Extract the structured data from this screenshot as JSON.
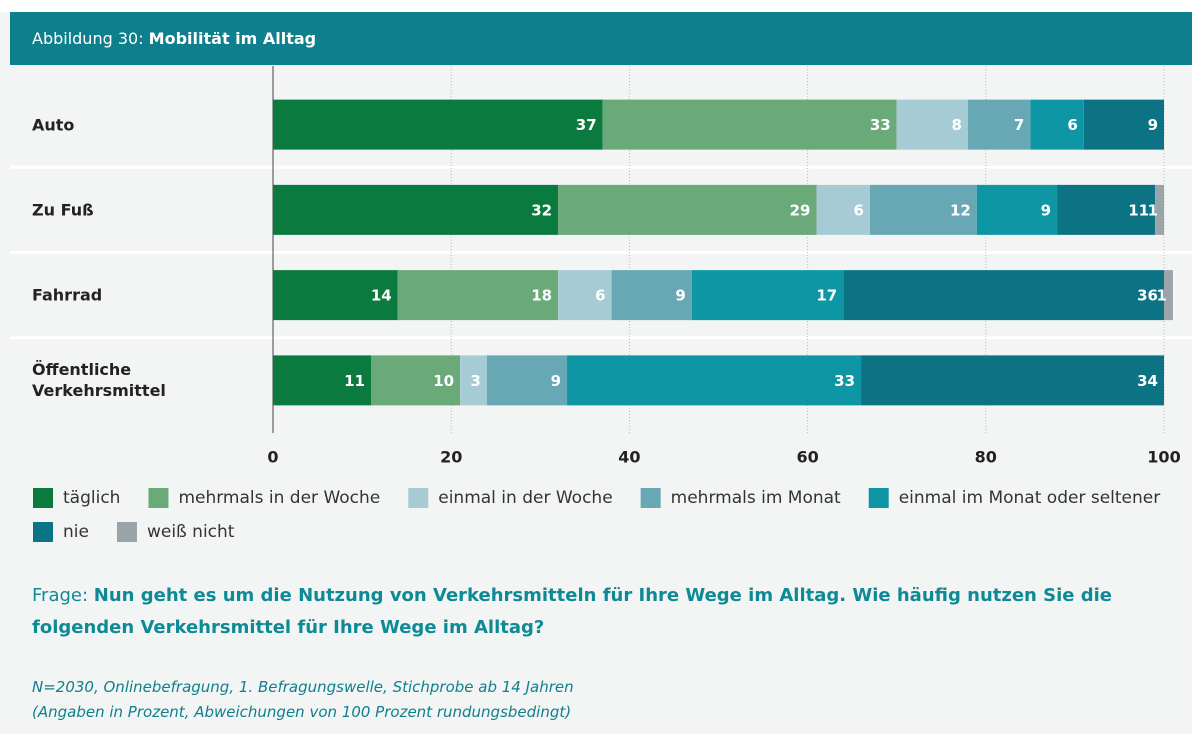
{
  "chart_data": {
    "type": "stacked_barh",
    "figure_label": "Abbildung 30:",
    "title": "Mobilität im Alltag",
    "categories": [
      "Auto",
      "Zu Fuß",
      "Fahrrad",
      "Öffentliche Verkehrsmittel"
    ],
    "series": [
      {
        "name": "täglich",
        "color": "#0b7a3e",
        "values": [
          37,
          32,
          14,
          11
        ]
      },
      {
        "name": "mehrmals in der Woche",
        "color": "#6aa978",
        "values": [
          33,
          29,
          18,
          10
        ]
      },
      {
        "name": "einmal in der Woche",
        "color": "#a7cbd4",
        "values": [
          8,
          6,
          6,
          3
        ]
      },
      {
        "name": "mehrmals im Monat",
        "color": "#67a8b4",
        "values": [
          7,
          12,
          9,
          9
        ]
      },
      {
        "name": "einmal im Monat oder seltener",
        "color": "#0f96a5",
        "values": [
          6,
          9,
          17,
          33
        ]
      },
      {
        "name": "nie",
        "color": "#0b7384",
        "values": [
          9,
          11,
          36,
          34
        ]
      },
      {
        "name": "weiß nicht",
        "color": "#9ba4a9",
        "values": [
          null,
          1,
          1,
          null
        ]
      }
    ],
    "xlim": [
      0,
      100
    ],
    "xticks": [
      0,
      20,
      40,
      60,
      80,
      100
    ],
    "grid": true,
    "question_label": "Frage:",
    "question": "Nun geht es um die Nutzung von Verkehrsmitteln für Ihre Wege im Alltag. Wie häufig nutzen Sie die folgenden Verkehrsmittel für Ihre Wege im Alltag?",
    "note": [
      "N=2030, Onlinebefragung, 1. Befragungswelle, Stichprobe ab 14 Jahren",
      "(Angaben in Prozent, Abweichungen von 100 Prozent rundungsbedingt)"
    ]
  }
}
